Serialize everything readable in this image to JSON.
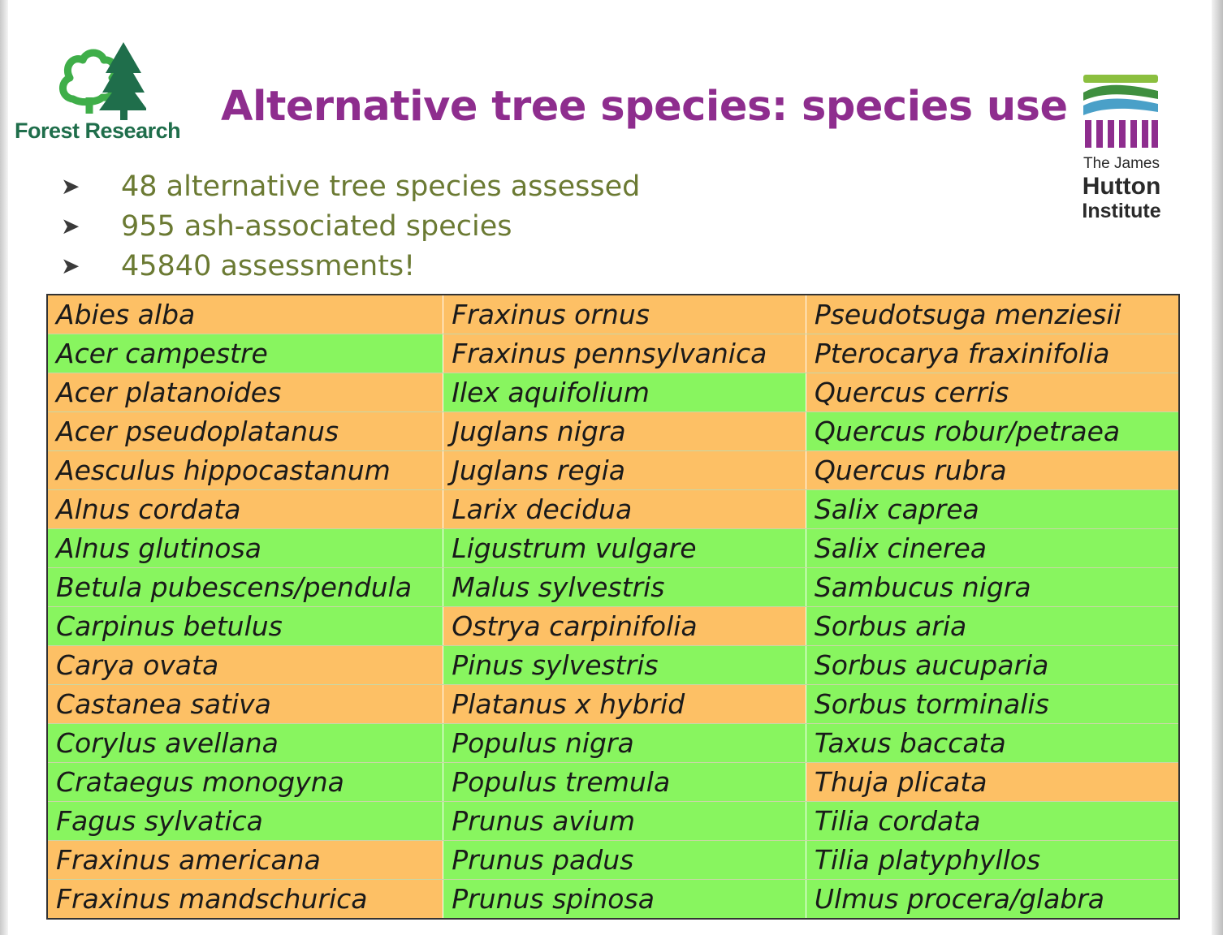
{
  "logos": {
    "forest_research": "Forest Research",
    "james_hutton": {
      "line1": "The James",
      "line2": "Hutton",
      "line3": "Institute"
    }
  },
  "title": "Alternative tree species: species use",
  "bullets": [
    "48 alternative tree species assessed",
    "955 ash-associated species",
    "45840 assessments!"
  ],
  "colors": {
    "orange": "#fdc065",
    "green": "#88f55f",
    "title": "#8e2d8e",
    "bullet_text": "#6b7a33"
  },
  "table": {
    "rows": [
      [
        {
          "name": "Abies alba",
          "color": "orange"
        },
        {
          "name": "Fraxinus ornus",
          "color": "orange"
        },
        {
          "name": "Pseudotsuga menziesii",
          "color": "orange"
        }
      ],
      [
        {
          "name": "Acer campestre",
          "color": "green"
        },
        {
          "name": "Fraxinus pennsylvanica",
          "color": "orange"
        },
        {
          "name": "Pterocarya fraxinifolia",
          "color": "orange"
        }
      ],
      [
        {
          "name": "Acer platanoides",
          "color": "orange"
        },
        {
          "name": "Ilex aquifolium",
          "color": "green"
        },
        {
          "name": "Quercus cerris",
          "color": "orange"
        }
      ],
      [
        {
          "name": "Acer pseudoplatanus",
          "color": "orange"
        },
        {
          "name": "Juglans nigra",
          "color": "orange"
        },
        {
          "name": "Quercus robur/petraea",
          "color": "green"
        }
      ],
      [
        {
          "name": "Aesculus hippocastanum",
          "color": "orange"
        },
        {
          "name": "Juglans regia",
          "color": "orange"
        },
        {
          "name": "Quercus rubra",
          "color": "orange"
        }
      ],
      [
        {
          "name": "Alnus cordata",
          "color": "orange"
        },
        {
          "name": "Larix decidua",
          "color": "orange"
        },
        {
          "name": "Salix caprea",
          "color": "green"
        }
      ],
      [
        {
          "name": "Alnus glutinosa",
          "color": "green"
        },
        {
          "name": "Ligustrum vulgare",
          "color": "green"
        },
        {
          "name": "Salix cinerea",
          "color": "green"
        }
      ],
      [
        {
          "name": "Betula pubescens/pendula",
          "color": "green"
        },
        {
          "name": "Malus sylvestris",
          "color": "green"
        },
        {
          "name": "Sambucus nigra",
          "color": "green"
        }
      ],
      [
        {
          "name": "Carpinus betulus",
          "color": "green"
        },
        {
          "name": "Ostrya carpinifolia",
          "color": "orange"
        },
        {
          "name": "Sorbus aria",
          "color": "green"
        }
      ],
      [
        {
          "name": "Carya ovata",
          "color": "orange"
        },
        {
          "name": "Pinus sylvestris",
          "color": "green"
        },
        {
          "name": "Sorbus aucuparia",
          "color": "green"
        }
      ],
      [
        {
          "name": "Castanea sativa",
          "color": "orange"
        },
        {
          "name": "Platanus x hybrid",
          "color": "orange"
        },
        {
          "name": "Sorbus torminalis",
          "color": "green"
        }
      ],
      [
        {
          "name": "Corylus avellana",
          "color": "green"
        },
        {
          "name": "Populus nigra",
          "color": "green"
        },
        {
          "name": "Taxus baccata",
          "color": "green"
        }
      ],
      [
        {
          "name": "Crataegus monogyna",
          "color": "green"
        },
        {
          "name": "Populus tremula",
          "color": "green"
        },
        {
          "name": "Thuja plicata",
          "color": "orange"
        }
      ],
      [
        {
          "name": "Fagus sylvatica",
          "color": "green"
        },
        {
          "name": "Prunus avium",
          "color": "green"
        },
        {
          "name": "Tilia cordata",
          "color": "green"
        }
      ],
      [
        {
          "name": "Fraxinus americana",
          "color": "orange"
        },
        {
          "name": "Prunus padus",
          "color": "green"
        },
        {
          "name": "Tilia platyphyllos",
          "color": "green"
        }
      ],
      [
        {
          "name": "Fraxinus mandschurica",
          "color": "orange"
        },
        {
          "name": "Prunus spinosa",
          "color": "green"
        },
        {
          "name": "Ulmus procera/glabra",
          "color": "green"
        }
      ]
    ]
  }
}
